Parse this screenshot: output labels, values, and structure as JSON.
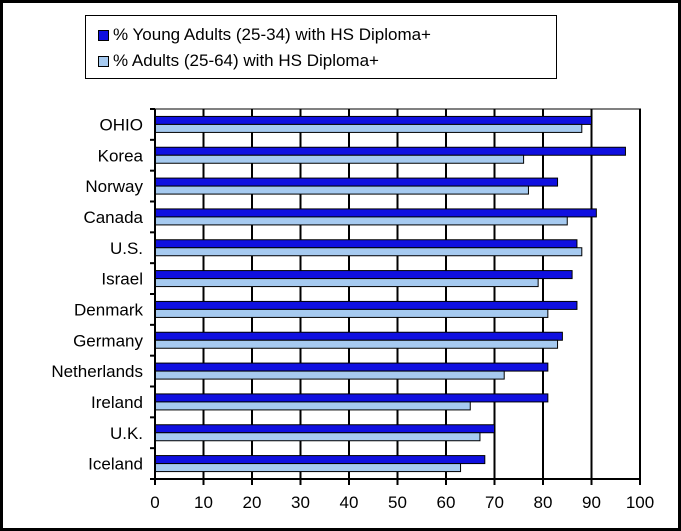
{
  "colors": {
    "series1": "#1010e0",
    "series2": "#a6caf0",
    "axis": "#000000",
    "plot_border": "#808080",
    "grid": "#000000"
  },
  "legend": {
    "items": [
      {
        "label": "% Young Adults (25-34) with HS Diploma+"
      },
      {
        "label": "% Adults (25-64) with HS Diploma+"
      }
    ]
  },
  "chart_data": {
    "type": "bar",
    "orientation": "horizontal",
    "categories": [
      "OHIO",
      "Korea",
      "Norway",
      "Canada",
      "U.S.",
      "Israel",
      "Denmark",
      "Germany",
      "Netherlands",
      "Ireland",
      "U.K.",
      "Iceland"
    ],
    "series": [
      {
        "name": "% Young Adults (25-34) with HS Diploma+",
        "values": [
          90,
          97,
          83,
          91,
          87,
          86,
          87,
          84,
          81,
          81,
          70,
          68
        ]
      },
      {
        "name": "% Adults (25-64) with HS Diploma+",
        "values": [
          88,
          76,
          77,
          85,
          88,
          79,
          81,
          83,
          72,
          65,
          67,
          63
        ]
      }
    ],
    "x_ticks": [
      0,
      10,
      20,
      30,
      40,
      50,
      60,
      70,
      80,
      90,
      100
    ],
    "xlim": [
      0,
      100
    ],
    "grid": "vertical",
    "legend_position": "top"
  }
}
